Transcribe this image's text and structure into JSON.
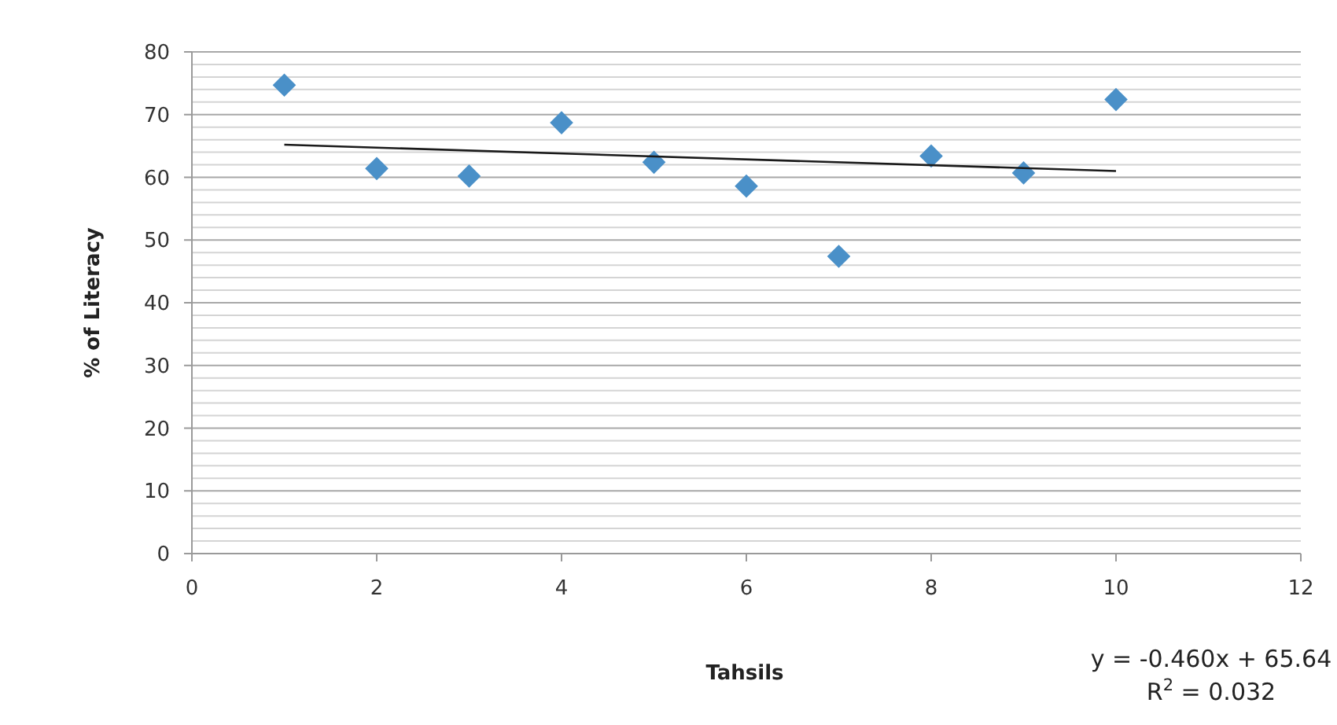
{
  "chart_data": {
    "type": "scatter",
    "xlabel": "Tahsils",
    "ylabel": "% of Literacy",
    "xlim": [
      0,
      12
    ],
    "xticks": [
      0,
      2,
      4,
      6,
      8,
      10,
      12
    ],
    "ylim": [
      0,
      80
    ],
    "yticks": [
      0,
      {
        "value": 2,
        "label": null
      },
      {
        "value": 4,
        "label": null
      },
      {
        "value": 6,
        "label": null
      },
      {
        "value": 8,
        "label": null
      },
      10,
      {
        "value": 12,
        "label": null
      },
      {
        "value": 14,
        "label": null
      },
      {
        "value": 16,
        "label": null
      },
      {
        "value": 18,
        "label": null
      },
      20,
      {
        "value": 22,
        "label": null
      },
      {
        "value": 24,
        "label": null
      },
      {
        "value": 26,
        "label": null
      },
      {
        "value": 28,
        "label": null
      },
      30,
      {
        "value": 32,
        "label": null
      },
      {
        "value": 34,
        "label": null
      },
      {
        "value": 36,
        "label": null
      },
      {
        "value": 38,
        "label": null
      },
      40,
      {
        "value": 42,
        "label": null
      },
      {
        "value": 44,
        "label": null
      },
      {
        "value": 46,
        "label": null
      },
      {
        "value": 48,
        "label": null
      },
      50,
      {
        "value": 52,
        "label": null
      },
      {
        "value": 54,
        "label": null
      },
      {
        "value": 56,
        "label": null
      },
      {
        "value": 58,
        "label": null
      },
      60,
      {
        "value": 62,
        "label": null
      },
      {
        "value": 64,
        "label": null
      },
      {
        "value": 66,
        "label": null
      },
      {
        "value": 68,
        "label": null
      },
      70,
      {
        "value": 72,
        "label": null
      },
      {
        "value": 74,
        "label": null
      },
      {
        "value": 76,
        "label": null
      },
      {
        "value": 78,
        "label": null
      },
      80
    ],
    "grid": "y",
    "marker": "diamond",
    "series": [
      {
        "color": "#4a90c8",
        "x": [
          1,
          2,
          3,
          4,
          5,
          6,
          7,
          8,
          9,
          10
        ],
        "values": [
          74.7,
          61.4,
          60.2,
          68.7,
          62.4,
          58.6,
          47.4,
          63.4,
          60.7,
          72.4
        ]
      },
      {
        "type": "line",
        "color": "#1a1a1a",
        "marker": "none",
        "line_style": "solid",
        "x": [
          1,
          10
        ],
        "values": [
          65.2,
          61.0
        ]
      }
    ],
    "annotations": [
      "y = -0.460x + 65.64",
      "R$^{2}$ = 0.032"
    ]
  }
}
